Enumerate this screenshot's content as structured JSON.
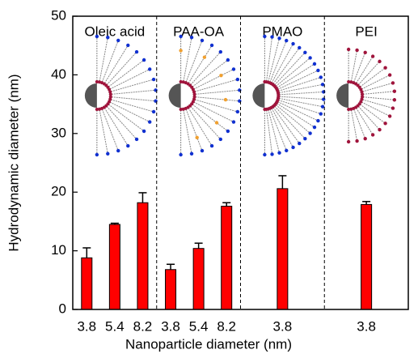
{
  "chart_data": {
    "type": "bar",
    "ylabel": "Hydrodynamic diameter (nm)",
    "xlabel": "Nanoparticle diameter (nm)",
    "ylim": [
      0,
      50
    ],
    "yticks": [
      0,
      10,
      20,
      30,
      40,
      50
    ],
    "color": "#ff0000",
    "panels": [
      {
        "title": "Oleic acid",
        "categories": [
          "3.8",
          "5.4",
          "8.2"
        ],
        "values": [
          8.8,
          14.5,
          18.2
        ],
        "errors": [
          1.7,
          0.2,
          1.7
        ]
      },
      {
        "title": "PAA-OA",
        "categories": [
          "3.8",
          "5.4",
          "8.2"
        ],
        "values": [
          6.8,
          10.4,
          17.6
        ],
        "errors": [
          0.9,
          0.9,
          0.6
        ]
      },
      {
        "title": "PMAO",
        "categories": [
          "3.8"
        ],
        "values": [
          20.6
        ],
        "errors": [
          2.2
        ]
      },
      {
        "title": "PEI",
        "categories": [
          "3.8"
        ],
        "values": [
          17.9
        ],
        "errors": [
          0.5
        ]
      }
    ]
  }
}
